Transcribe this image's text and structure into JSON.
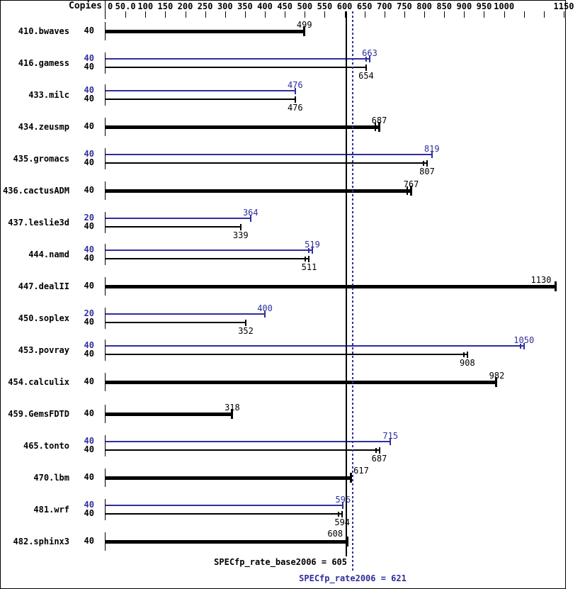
{
  "chart_data": {
    "type": "bar",
    "orientation": "horizontal",
    "copies_header": "Copies",
    "xlim": [
      0,
      1150
    ],
    "grid": false,
    "axis_labels": [
      {
        "text": "0",
        "value": 0,
        "tick": false
      },
      {
        "text": "50.0",
        "value": 50,
        "tick": true
      },
      {
        "text": "100",
        "value": 100,
        "tick": true
      },
      {
        "text": "150",
        "value": 150,
        "tick": true
      },
      {
        "text": "200",
        "value": 200,
        "tick": true
      },
      {
        "text": "250",
        "value": 250,
        "tick": true
      },
      {
        "text": "300",
        "value": 300,
        "tick": true
      },
      {
        "text": "350",
        "value": 350,
        "tick": true
      },
      {
        "text": "400",
        "value": 400,
        "tick": true
      },
      {
        "text": "450",
        "value": 450,
        "tick": true
      },
      {
        "text": "500",
        "value": 500,
        "tick": true
      },
      {
        "text": "550",
        "value": 550,
        "tick": true
      },
      {
        "text": "600",
        "value": 600,
        "tick": true
      },
      {
        "text": "650",
        "value": 650,
        "tick": true
      },
      {
        "text": "700",
        "value": 700,
        "tick": true
      },
      {
        "text": "750",
        "value": 750,
        "tick": true
      },
      {
        "text": "800",
        "value": 800,
        "tick": true
      },
      {
        "text": "850",
        "value": 850,
        "tick": true
      },
      {
        "text": "900",
        "value": 900,
        "tick": true
      },
      {
        "text": "950",
        "value": 950,
        "tick": true
      },
      {
        "text": "1000",
        "value": 1000,
        "tick": true
      },
      {
        "text": "1150",
        "value": 1150,
        "tick": true
      }
    ],
    "unlabeled_tick_values": [
      1050,
      1100
    ],
    "series_colors": {
      "base": "#000000",
      "peak": "#2e2e9e"
    },
    "rows": [
      {
        "name": "410.bwaves",
        "bars": [
          {
            "kind": "base",
            "copies": "40",
            "value": 499,
            "marker": "single"
          }
        ]
      },
      {
        "name": "416.gamess",
        "bars": [
          {
            "kind": "peak",
            "copies": "40",
            "value": 663,
            "marker": "double"
          },
          {
            "kind": "base",
            "copies": "40",
            "value": 654,
            "marker": "single"
          }
        ]
      },
      {
        "name": "433.milc",
        "bars": [
          {
            "kind": "peak",
            "copies": "40",
            "value": 476,
            "marker": "single"
          },
          {
            "kind": "base",
            "copies": "40",
            "value": 476,
            "marker": "single"
          }
        ]
      },
      {
        "name": "434.zeusmp",
        "bars": [
          {
            "kind": "base",
            "copies": "40",
            "value": 687,
            "marker": "double"
          }
        ]
      },
      {
        "name": "435.gromacs",
        "bars": [
          {
            "kind": "peak",
            "copies": "40",
            "value": 819,
            "marker": "single"
          },
          {
            "kind": "base",
            "copies": "40",
            "value": 807,
            "marker": "double"
          }
        ]
      },
      {
        "name": "436.cactusADM",
        "bars": [
          {
            "kind": "base",
            "copies": "40",
            "value": 767,
            "marker": "double"
          }
        ]
      },
      {
        "name": "437.leslie3d",
        "bars": [
          {
            "kind": "peak",
            "copies": "20",
            "value": 364,
            "marker": "single"
          },
          {
            "kind": "base",
            "copies": "40",
            "value": 339,
            "marker": "single"
          }
        ]
      },
      {
        "name": "444.namd",
        "bars": [
          {
            "kind": "peak",
            "copies": "40",
            "value": 519,
            "marker": "double"
          },
          {
            "kind": "base",
            "copies": "40",
            "value": 511,
            "marker": "double"
          }
        ]
      },
      {
        "name": "447.dealII",
        "bars": [
          {
            "kind": "base",
            "copies": "40",
            "value": 1130,
            "marker": "single"
          }
        ]
      },
      {
        "name": "450.soplex",
        "bars": [
          {
            "kind": "peak",
            "copies": "20",
            "value": 400,
            "marker": "single"
          },
          {
            "kind": "base",
            "copies": "40",
            "value": 352,
            "marker": "single"
          }
        ]
      },
      {
        "name": "453.povray",
        "bars": [
          {
            "kind": "peak",
            "copies": "40",
            "value": 1050,
            "marker": "double"
          },
          {
            "kind": "base",
            "copies": "40",
            "value": 908,
            "marker": "double"
          }
        ]
      },
      {
        "name": "454.calculix",
        "bars": [
          {
            "kind": "base",
            "copies": "40",
            "value": 982,
            "marker": "single"
          }
        ]
      },
      {
        "name": "459.GemsFDTD",
        "bars": [
          {
            "kind": "base",
            "copies": "40",
            "value": 318,
            "marker": "single"
          }
        ]
      },
      {
        "name": "465.tonto",
        "bars": [
          {
            "kind": "peak",
            "copies": "40",
            "value": 715,
            "marker": "single"
          },
          {
            "kind": "base",
            "copies": "40",
            "value": 687,
            "marker": "double"
          }
        ]
      },
      {
        "name": "470.lbm",
        "bars": [
          {
            "kind": "base",
            "copies": "40",
            "value": 617,
            "marker": "single",
            "label_pos": "right-of-end"
          }
        ]
      },
      {
        "name": "481.wrf",
        "bars": [
          {
            "kind": "peak",
            "copies": "40",
            "value": 596,
            "marker": "single"
          },
          {
            "kind": "base",
            "copies": "40",
            "value": 594,
            "marker": "double"
          }
        ]
      },
      {
        "name": "482.sphinx3",
        "bars": [
          {
            "kind": "base",
            "copies": "40",
            "value": 608,
            "marker": "single",
            "label_pos": "left-of-end"
          }
        ]
      }
    ],
    "reference_lines": [
      {
        "name": "base",
        "label": "SPECfp_rate_base2006 = 605",
        "value": 605,
        "style": "solid",
        "color": "#000000"
      },
      {
        "name": "peak",
        "label": "SPECfp_rate2006 = 621",
        "value": 621,
        "style": "dotted",
        "color": "#2e2e9e"
      }
    ]
  }
}
